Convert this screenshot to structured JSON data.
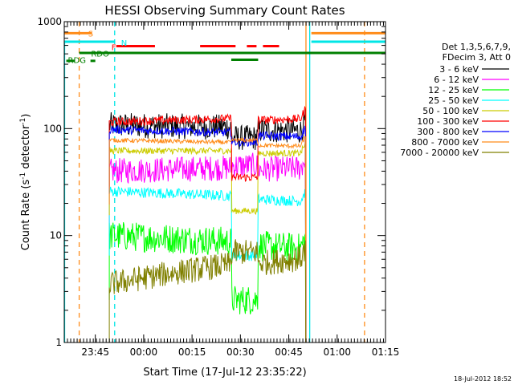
{
  "chart_data": {
    "type": "line",
    "title": "HESSI Observing Summary Count Rates",
    "xlabel": "Start Time (17-Jul-12 23:35:22)",
    "ylabel_main": "Count Rate (s",
    "ylabel_sup1": "-1",
    "ylabel_mid": " detector",
    "ylabel_sup2": "-1",
    "ylabel_end": ")",
    "yscale": "log",
    "ylim": [
      1,
      1000
    ],
    "xlim": [
      "23:35:22",
      "01:15:00"
    ],
    "x_ticks": [
      "23:45",
      "00:00",
      "00:15",
      "00:30",
      "00:45",
      "01:00",
      "01:15"
    ],
    "y_ticks": [
      "1",
      "10",
      "100",
      "1000"
    ],
    "legend_header": [
      "Det 1,3,5,6,7,9,",
      "FDecim 3, Att 0"
    ],
    "legend_placement": "right",
    "footer_date": "18-Jul-2012 18:52",
    "flags": [
      {
        "label": "S",
        "color": "#ff8c1a"
      },
      {
        "label": "N",
        "color": "#00e6e6"
      },
      {
        "label": "F",
        "color": "#ff0000"
      },
      {
        "label": "RDO",
        "color": "#008000"
      },
      {
        "label": "RDG",
        "color": "#008000"
      }
    ],
    "series": [
      {
        "name": "3 - 6 keV",
        "color": "#000000",
        "level_start": 108,
        "level_end": 100,
        "mid": 82,
        "noise": 0.12
      },
      {
        "name": "6 - 12 keV",
        "color": "#ff00ff",
        "level_start": 40,
        "level_end": 45,
        "mid": 45,
        "noise": 0.12
      },
      {
        "name": "12 - 25 keV",
        "color": "#00ff00",
        "level_start": 10,
        "level_end": 8,
        "mid": 2.5,
        "noise": 0.14
      },
      {
        "name": "25 - 50 keV",
        "color": "#00ffff",
        "level_start": 26,
        "level_end": 22,
        "mid": 6.5,
        "noise": 0.05
      },
      {
        "name": "50 - 100 keV",
        "color": "#cccc00",
        "level_start": 62,
        "level_end": 62,
        "mid": 17,
        "noise": 0.03
      },
      {
        "name": "100 - 300 keV",
        "color": "#ff0000",
        "level_start": 115,
        "level_end": 130,
        "mid": 35,
        "noise": 0.04
      },
      {
        "name": "300 - 800 keV",
        "color": "#0000ff",
        "level_start": 98,
        "level_end": 88,
        "mid": 75,
        "noise": 0.04
      },
      {
        "name": "800 - 7000 keV",
        "color": "#ff8c1a",
        "level_start": 78,
        "level_end": 72,
        "mid": 78,
        "noise": 0.02
      },
      {
        "name": "7000 - 20000 keV",
        "color": "#808000",
        "level_start": 3.5,
        "level_end": 6.5,
        "mid": 7,
        "noise": 0.12
      }
    ]
  }
}
